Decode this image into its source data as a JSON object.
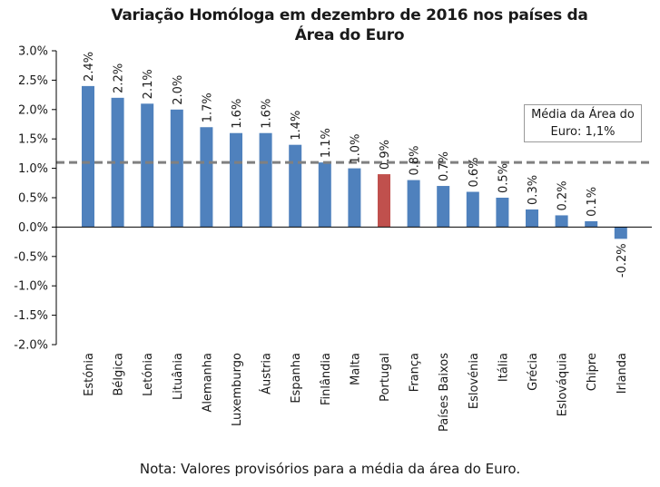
{
  "chart_data": {
    "type": "bar",
    "title_line1": "Variação Homóloga em dezembro de 2016 nos países da",
    "title_line2": "Área do Euro",
    "categories": [
      "Estónia",
      "Bélgica",
      "Letónia",
      "Lituânia",
      "Alemanha",
      "Luxemburgo",
      "Áustria",
      "Espanha",
      "Finlândia",
      "Malta",
      "Portugal",
      "França",
      "Países Baixos",
      "Eslovénia",
      "Itália",
      "Grécia",
      "Eslováquia",
      "Chipre",
      "Irlanda"
    ],
    "values": [
      2.4,
      2.2,
      2.1,
      2.0,
      1.7,
      1.6,
      1.6,
      1.4,
      1.1,
      1.0,
      0.9,
      0.8,
      0.7,
      0.6,
      0.5,
      0.3,
      0.2,
      0.1,
      -0.2
    ],
    "value_labels": [
      "2.4%",
      "2.2%",
      "2.1%",
      "2.0%",
      "1.7%",
      "1.6%",
      "1.6%",
      "1.4%",
      "1.1%",
      "1.0%",
      "0.9%",
      "0.8%",
      "0.7%",
      "0.6%",
      "0.5%",
      "0.3%",
      "0.2%",
      "0.1%",
      "-0.2%"
    ],
    "highlight_category": "Portugal",
    "ylim": [
      -2.0,
      3.0
    ],
    "ytick_step": 0.5,
    "ytick_labels": [
      "3.0%",
      "2.5%",
      "2.0%",
      "1.5%",
      "1.0%",
      "0.5%",
      "0.0%",
      "-0.5%",
      "-1.0%",
      "-1.5%",
      "-2.0%"
    ],
    "average": 1.1,
    "average_label_line1": "Média da Área do",
    "average_label_line2": "Euro: 1,1%",
    "note": "Nota: Valores provisórios para a média da área do Euro.",
    "colors": {
      "bar": "#4f81bd",
      "highlight": "#c0504d",
      "average_line": "#808080",
      "axis": "#000000"
    }
  }
}
